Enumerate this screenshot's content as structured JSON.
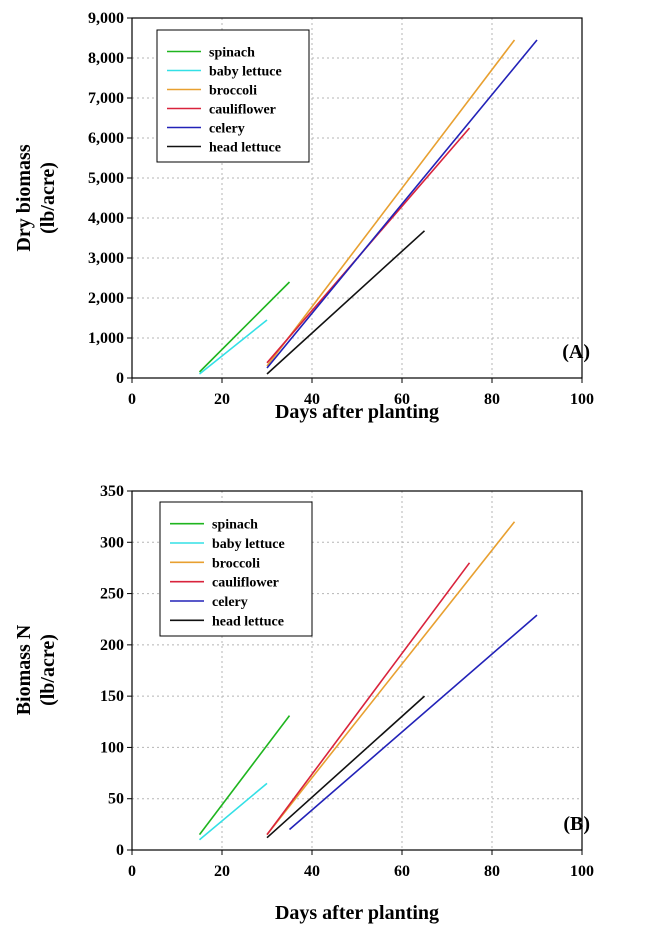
{
  "chart_data": [
    {
      "type": "line",
      "panel_label": "(A)",
      "xlabel": "Days after planting",
      "ylabel": [
        "Dry biomass",
        "(lb/acre)"
      ],
      "xlim": [
        0,
        100
      ],
      "ylim": [
        0,
        9000
      ],
      "xticks": [
        0,
        20,
        40,
        60,
        80,
        100
      ],
      "yticks": [
        0,
        1000,
        2000,
        3000,
        4000,
        5000,
        6000,
        7000,
        8000,
        9000
      ],
      "xtick_labels": [
        "0",
        "20",
        "40",
        "60",
        "80",
        "100"
      ],
      "ytick_labels": [
        "0",
        "1,000",
        "2,000",
        "3,000",
        "4,000",
        "5,000",
        "6,000",
        "7,000",
        "8,000",
        "9,000"
      ],
      "grid": true,
      "legend_position": "top-left",
      "series": [
        {
          "name": "spinach",
          "color": "#1fb51f",
          "x": [
            15,
            35
          ],
          "y": [
            150,
            2400
          ]
        },
        {
          "name": "baby lettuce",
          "color": "#33e0e6",
          "x": [
            15,
            30
          ],
          "y": [
            100,
            1450
          ]
        },
        {
          "name": "broccoli",
          "color": "#e8a030",
          "x": [
            30,
            85
          ],
          "y": [
            300,
            8450
          ]
        },
        {
          "name": "cauliflower",
          "color": "#d9233c",
          "x": [
            30,
            75
          ],
          "y": [
            380,
            6250
          ]
        },
        {
          "name": "celery",
          "color": "#2222b8",
          "x": [
            30,
            90
          ],
          "y": [
            250,
            8450
          ]
        },
        {
          "name": "head lettuce",
          "color": "#111111",
          "x": [
            30,
            65
          ],
          "y": [
            100,
            3680
          ]
        }
      ]
    },
    {
      "type": "line",
      "panel_label": "(B)",
      "xlabel": "Days after planting",
      "ylabel": [
        "Biomass N",
        "(lb/acre)"
      ],
      "xlim": [
        0,
        100
      ],
      "ylim": [
        0,
        350
      ],
      "xticks": [
        0,
        20,
        40,
        60,
        80,
        100
      ],
      "yticks": [
        0,
        50,
        100,
        150,
        200,
        250,
        300,
        350
      ],
      "xtick_labels": [
        "0",
        "20",
        "40",
        "60",
        "80",
        "100"
      ],
      "ytick_labels": [
        "0",
        "50",
        "100",
        "150",
        "200",
        "250",
        "300",
        "350"
      ],
      "grid": true,
      "legend_position": "top-left",
      "series": [
        {
          "name": "spinach",
          "color": "#1fb51f",
          "x": [
            15,
            35
          ],
          "y": [
            15,
            131
          ]
        },
        {
          "name": "baby lettuce",
          "color": "#33e0e6",
          "x": [
            15,
            30
          ],
          "y": [
            10,
            65
          ]
        },
        {
          "name": "broccoli",
          "color": "#e8a030",
          "x": [
            30,
            85
          ],
          "y": [
            15,
            320
          ]
        },
        {
          "name": "cauliflower",
          "color": "#d9233c",
          "x": [
            30,
            75
          ],
          "y": [
            15,
            280
          ]
        },
        {
          "name": "celery",
          "color": "#2222b8",
          "x": [
            35,
            90
          ],
          "y": [
            20,
            229
          ]
        },
        {
          "name": "head lettuce",
          "color": "#111111",
          "x": [
            30,
            65
          ],
          "y": [
            12,
            150
          ]
        }
      ]
    }
  ]
}
